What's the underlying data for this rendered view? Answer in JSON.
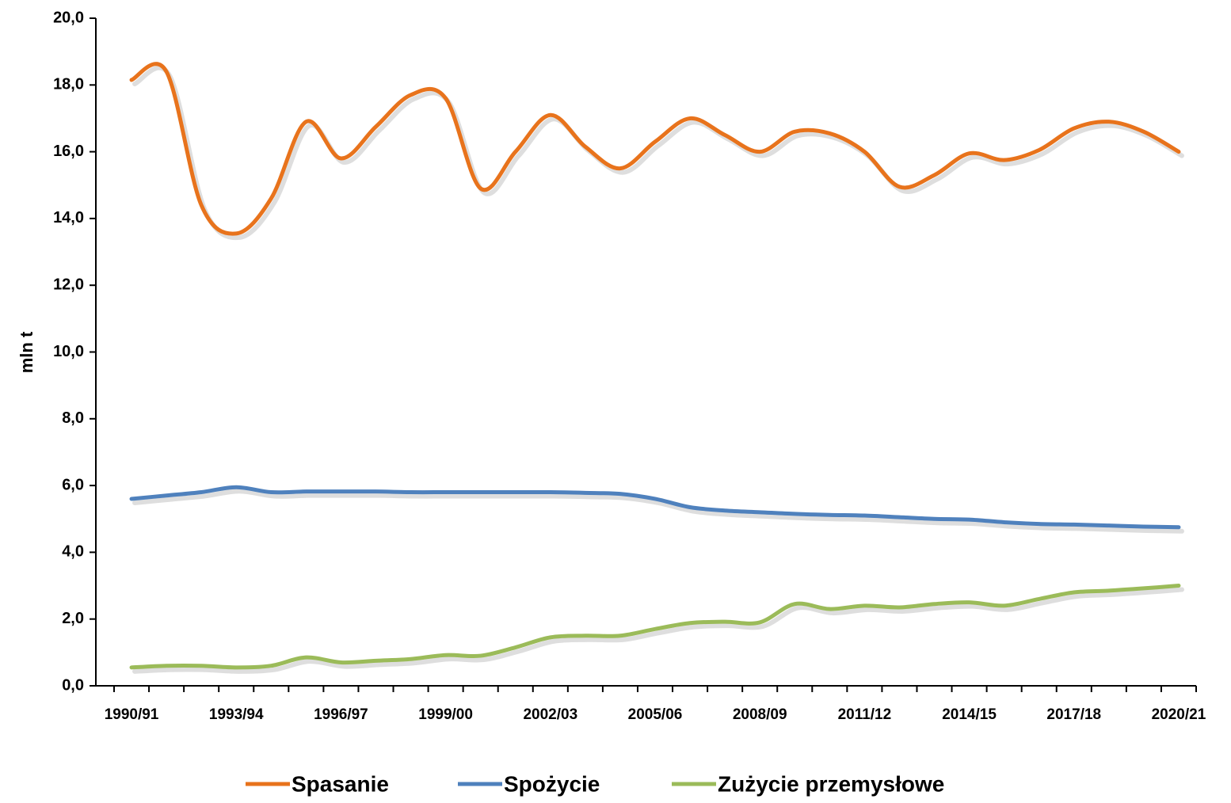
{
  "chart_data": {
    "type": "line",
    "ylabel": "mln t",
    "categories": [
      "1990/91",
      null,
      null,
      "1993/94",
      null,
      null,
      "1996/97",
      null,
      null,
      "1999/00",
      null,
      null,
      "2002/03",
      null,
      null,
      "2005/06",
      null,
      null,
      "2008/09",
      null,
      null,
      "2011/12",
      null,
      null,
      "2014/15",
      null,
      null,
      "2017/18",
      null,
      null,
      "2020/21"
    ],
    "series": [
      {
        "name": "Spasanie",
        "color": "#E8731C",
        "values": [
          18.15,
          18.4,
          14.4,
          13.55,
          14.6,
          16.9,
          15.8,
          16.75,
          17.7,
          17.6,
          14.9,
          16.0,
          17.1,
          16.15,
          15.5,
          16.3,
          17.0,
          16.5,
          16.0,
          16.6,
          16.55,
          16.0,
          14.95,
          15.3,
          15.95,
          15.75,
          16.05,
          16.7,
          16.9,
          16.6,
          16.0
        ]
      },
      {
        "name": "Spożycie",
        "color": "#4F81BD",
        "values": [
          5.6,
          5.7,
          5.8,
          5.95,
          5.8,
          5.82,
          5.82,
          5.82,
          5.8,
          5.8,
          5.8,
          5.8,
          5.8,
          5.78,
          5.75,
          5.6,
          5.35,
          5.25,
          5.2,
          5.15,
          5.12,
          5.1,
          5.05,
          5.0,
          4.98,
          4.9,
          4.85,
          4.83,
          4.8,
          4.77,
          4.75
        ]
      },
      {
        "name": "Zużycie przemysłowe",
        "color": "#9BBB59",
        "values": [
          0.55,
          0.6,
          0.6,
          0.55,
          0.6,
          0.85,
          0.7,
          0.75,
          0.8,
          0.92,
          0.9,
          1.15,
          1.45,
          1.5,
          1.5,
          1.7,
          1.88,
          1.92,
          1.9,
          2.45,
          2.3,
          2.4,
          2.35,
          2.45,
          2.5,
          2.4,
          2.6,
          2.8,
          2.85,
          2.92,
          3.0
        ]
      }
    ],
    "ylim": [
      0,
      20
    ],
    "yticks": [
      {
        "value": 0,
        "label": "0,0"
      },
      {
        "value": 2,
        "label": "2,0"
      },
      {
        "value": 4,
        "label": "4,0"
      },
      {
        "value": 6,
        "label": "6,0"
      },
      {
        "value": 8,
        "label": "8,0"
      },
      {
        "value": 10,
        "label": "10,0"
      },
      {
        "value": 12,
        "label": "12,0"
      },
      {
        "value": 14,
        "label": "14,0"
      },
      {
        "value": 16,
        "label": "16,0"
      },
      {
        "value": 18,
        "label": "18,0"
      },
      {
        "value": 20,
        "label": "20,0"
      }
    ],
    "grid": false,
    "legend": "bottom"
  }
}
